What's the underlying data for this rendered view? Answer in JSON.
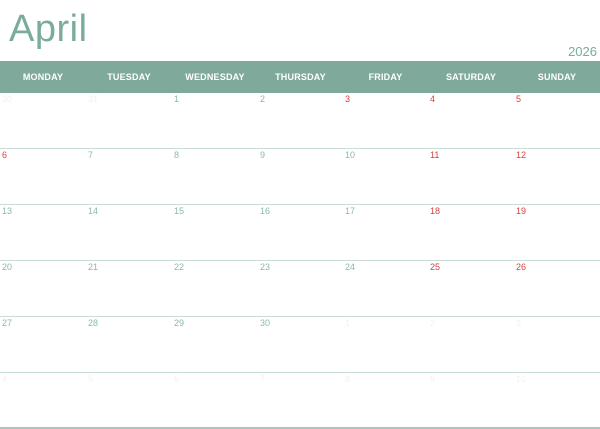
{
  "calendar": {
    "month": "April",
    "year": "2026",
    "weekdays": [
      "MONDAY",
      "TUESDAY",
      "WEDNESDAY",
      "THURSDAY",
      "FRIDAY",
      "SATURDAY",
      "SUNDAY"
    ],
    "weeks": [
      [
        {
          "day": "30",
          "status": "outside"
        },
        {
          "day": "31",
          "status": "outside"
        },
        {
          "day": "1",
          "status": "weekday"
        },
        {
          "day": "2",
          "status": "weekday"
        },
        {
          "day": "3",
          "status": "weekend"
        },
        {
          "day": "4",
          "status": "weekend"
        },
        {
          "day": "5",
          "status": "weekend"
        }
      ],
      [
        {
          "day": "6",
          "status": "weekend"
        },
        {
          "day": "7",
          "status": "weekday"
        },
        {
          "day": "8",
          "status": "weekday"
        },
        {
          "day": "9",
          "status": "weekday"
        },
        {
          "day": "10",
          "status": "weekday"
        },
        {
          "day": "11",
          "status": "weekend"
        },
        {
          "day": "12",
          "status": "weekend"
        }
      ],
      [
        {
          "day": "13",
          "status": "weekday"
        },
        {
          "day": "14",
          "status": "weekday"
        },
        {
          "day": "15",
          "status": "weekday"
        },
        {
          "day": "16",
          "status": "weekday"
        },
        {
          "day": "17",
          "status": "weekday"
        },
        {
          "day": "18",
          "status": "weekend"
        },
        {
          "day": "19",
          "status": "weekend"
        }
      ],
      [
        {
          "day": "20",
          "status": "weekday"
        },
        {
          "day": "21",
          "status": "weekday"
        },
        {
          "day": "22",
          "status": "weekday"
        },
        {
          "day": "23",
          "status": "weekday"
        },
        {
          "day": "24",
          "status": "weekday"
        },
        {
          "day": "25",
          "status": "weekend"
        },
        {
          "day": "26",
          "status": "weekend"
        }
      ],
      [
        {
          "day": "27",
          "status": "weekday"
        },
        {
          "day": "28",
          "status": "weekday"
        },
        {
          "day": "29",
          "status": "weekday"
        },
        {
          "day": "30",
          "status": "weekday"
        },
        {
          "day": "1",
          "status": "outside"
        },
        {
          "day": "2",
          "status": "outside"
        },
        {
          "day": "3",
          "status": "outside"
        }
      ],
      [
        {
          "day": "4",
          "status": "outside"
        },
        {
          "day": "5",
          "status": "outside"
        },
        {
          "day": "6",
          "status": "outside"
        },
        {
          "day": "7",
          "status": "outside"
        },
        {
          "day": "8",
          "status": "outside"
        },
        {
          "day": "9",
          "status": "outside"
        },
        {
          "day": "10",
          "status": "outside"
        }
      ]
    ]
  },
  "colors": {
    "accent": "#7fa99b",
    "title": "#7aab9c",
    "weekday_number": "#8db7aa",
    "weekend_number": "#d94040",
    "outside_number": "#eef3f1"
  }
}
